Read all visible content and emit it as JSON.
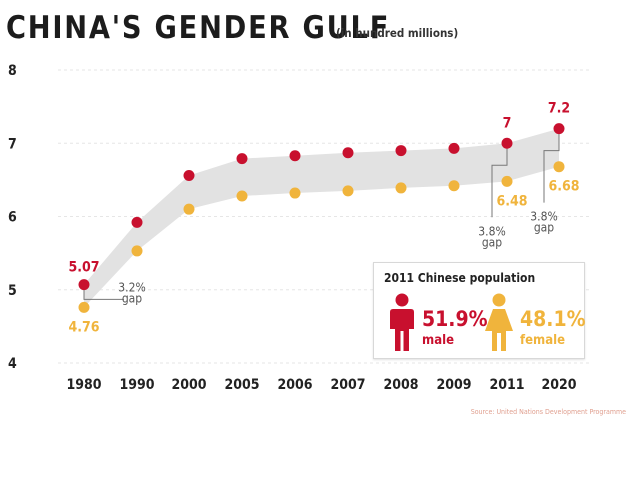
{
  "title": "CHINA'S GENDER GULF",
  "subtitle": "(in hundred millions)",
  "source": "Source: United Nations Development Programme",
  "colors": {
    "male": "#c8102e",
    "female": "#f0b43c",
    "band": "#e2e2e2"
  },
  "chart_data": {
    "type": "line",
    "categories": [
      "1980",
      "1990",
      "2000",
      "2005",
      "2006",
      "2007",
      "2008",
      "2009",
      "2011",
      "2020"
    ],
    "series": [
      {
        "key": "male",
        "values": [
          5.07,
          5.92,
          6.56,
          6.79,
          6.83,
          6.87,
          6.9,
          6.93,
          7.0,
          7.2
        ]
      },
      {
        "key": "female",
        "values": [
          4.76,
          5.53,
          6.1,
          6.28,
          6.32,
          6.35,
          6.39,
          6.42,
          6.48,
          6.68
        ]
      }
    ],
    "ylim": [
      4,
      8
    ],
    "yticks": [
      "4",
      "5",
      "6",
      "7",
      "8"
    ],
    "grid": true,
    "data_labels": [
      {
        "series": "male",
        "index": 0,
        "text": "5.07"
      },
      {
        "series": "female",
        "index": 0,
        "text": "4.76"
      },
      {
        "series": "male",
        "index": 8,
        "text": "7"
      },
      {
        "series": "female",
        "index": 8,
        "text": "6.48"
      },
      {
        "series": "male",
        "index": 9,
        "text": "7.2"
      },
      {
        "series": "female",
        "index": 9,
        "text": "6.68"
      }
    ],
    "annotations": [
      {
        "index": 0,
        "pct": "3.2%",
        "word": "gap"
      },
      {
        "index": 8,
        "pct": "3.8%",
        "word": "gap"
      },
      {
        "index": 9,
        "pct": "3.8%",
        "word": "gap"
      }
    ]
  },
  "population_box": {
    "title": "2011 Chinese population",
    "male_pct": "51.9%",
    "male_label": "male",
    "male_icon": "male-person-icon",
    "female_pct": "48.1%",
    "female_label": "female",
    "female_icon": "female-person-icon"
  }
}
